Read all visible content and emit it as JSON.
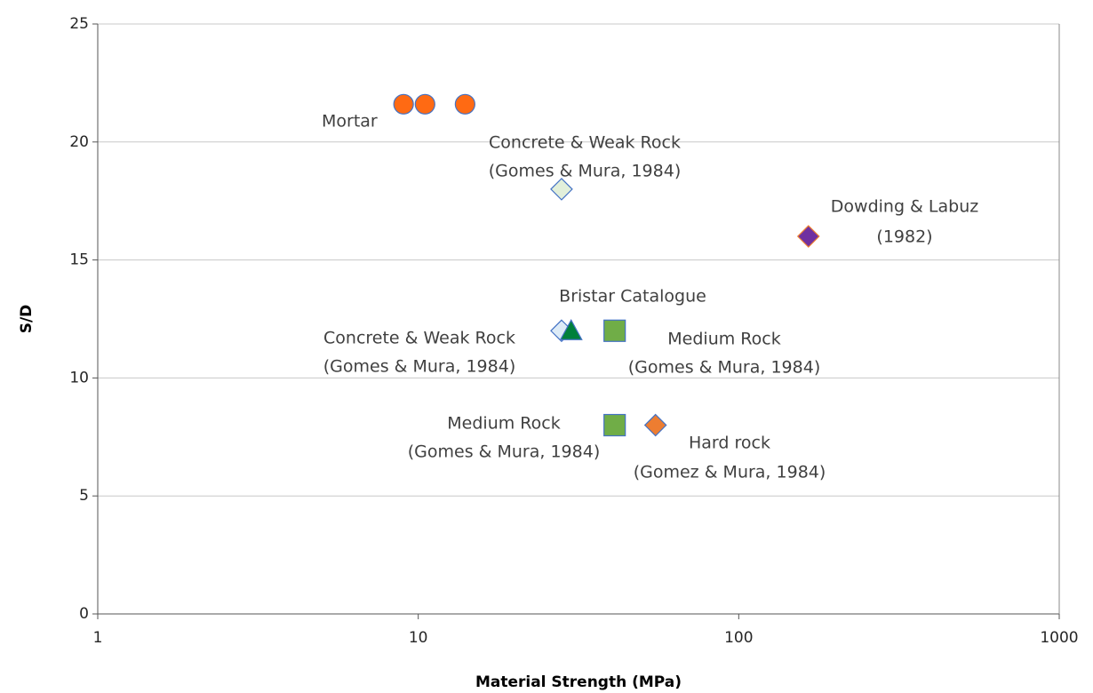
{
  "chart_data": {
    "type": "scatter",
    "xlabel": "Material Strength (MPa)",
    "ylabel": "S/D",
    "xscale": "log",
    "xlim": [
      1,
      1000
    ],
    "xticks": [
      1,
      10,
      100,
      1000
    ],
    "ylim": [
      0,
      25
    ],
    "yticks": [
      0,
      5,
      10,
      15,
      20,
      25
    ],
    "grid": true,
    "series": [
      {
        "marker": "circle",
        "color": "#ff6a13",
        "edgecolor": "#4472c4",
        "x": [
          9,
          10.5,
          14
        ],
        "values": [
          21.6,
          21.6,
          21.6
        ]
      },
      {
        "marker": "diamond",
        "color": "#e2efda",
        "edgecolor": "#4472c4",
        "x": [
          28
        ],
        "values": [
          18
        ]
      },
      {
        "marker": "diamond",
        "color": "#7030a0",
        "edgecolor": "#ed7d31",
        "x": [
          165
        ],
        "values": [
          16
        ]
      },
      {
        "marker": "diamond",
        "color": "#ddebf7",
        "edgecolor": "#4472c4",
        "x": [
          28
        ],
        "values": [
          12
        ]
      },
      {
        "marker": "triangle",
        "color": "#00803b",
        "edgecolor": "#4472c4",
        "x": [
          30
        ],
        "values": [
          12
        ]
      },
      {
        "marker": "square",
        "color": "#70ad47",
        "edgecolor": "#4472c4",
        "x": [
          41,
          41
        ],
        "values": [
          12,
          8
        ]
      },
      {
        "marker": "diamond",
        "color": "#ed7d31",
        "edgecolor": "#4472c4",
        "x": [
          55
        ],
        "values": [
          8
        ]
      }
    ],
    "annotations": [
      "Mortar",
      "Concrete & Weak Rock",
      "(Gomes & Mura, 1984)",
      "Dowding & Labuz",
      "(1982)",
      "Bristar Catalogue",
      "Concrete & Weak Rock",
      "(Gomes & Mura, 1984)",
      "Medium Rock",
      "(Gomes & Mura, 1984)",
      "Medium Rock",
      "(Gomes & Mura, 1984)",
      "Hard rock",
      "(Gomez & Mura, 1984)"
    ]
  }
}
